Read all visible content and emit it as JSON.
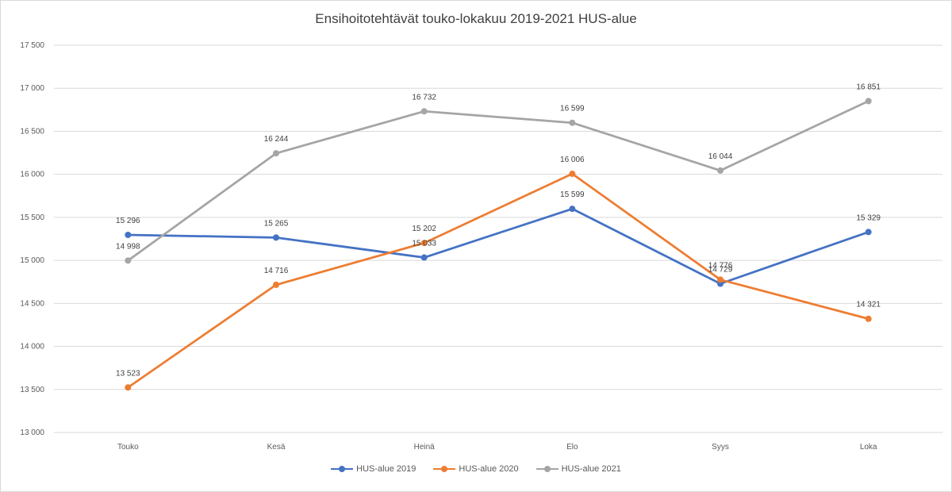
{
  "chart_data": {
    "type": "line",
    "title": "Ensihoitotehtävät touko-lokakuu 2019-2021 HUS-alue",
    "xlabel": "",
    "ylabel": "",
    "categories": [
      "Touko",
      "Kesä",
      "Heinä",
      "Elo",
      "Syys",
      "Loka"
    ],
    "ylim": [
      13000,
      17500
    ],
    "yticks": [
      13000,
      13500,
      14000,
      14500,
      15000,
      15500,
      16000,
      16500,
      17000,
      17500
    ],
    "ytick_labels": [
      "13 000",
      "13 500",
      "14 000",
      "14 500",
      "15 000",
      "15 500",
      "16 000",
      "16 500",
      "17 000",
      "17 500"
    ],
    "grid": true,
    "legend_position": "bottom",
    "series": [
      {
        "name": "HUS-alue 2019",
        "color": "#4472c4",
        "values": [
          15296,
          15265,
          15033,
          15599,
          14729,
          15329
        ],
        "labels": [
          "15 296",
          "15 265",
          "15 033",
          "15 599",
          "14 729",
          "15 329"
        ]
      },
      {
        "name": "HUS-alue 2020",
        "color": "#ed7d31",
        "values": [
          13523,
          14716,
          15202,
          16006,
          14776,
          14321
        ],
        "labels": [
          "13 523",
          "14 716",
          "15 202",
          "16 006",
          "14 776",
          "14 321"
        ]
      },
      {
        "name": "HUS-alue 2021",
        "color": "#a5a5a5",
        "values": [
          14998,
          16244,
          16732,
          16599,
          16044,
          16851
        ],
        "labels": [
          "14 998",
          "16 244",
          "16 732",
          "16 599",
          "16 044",
          "16 851"
        ]
      }
    ]
  }
}
